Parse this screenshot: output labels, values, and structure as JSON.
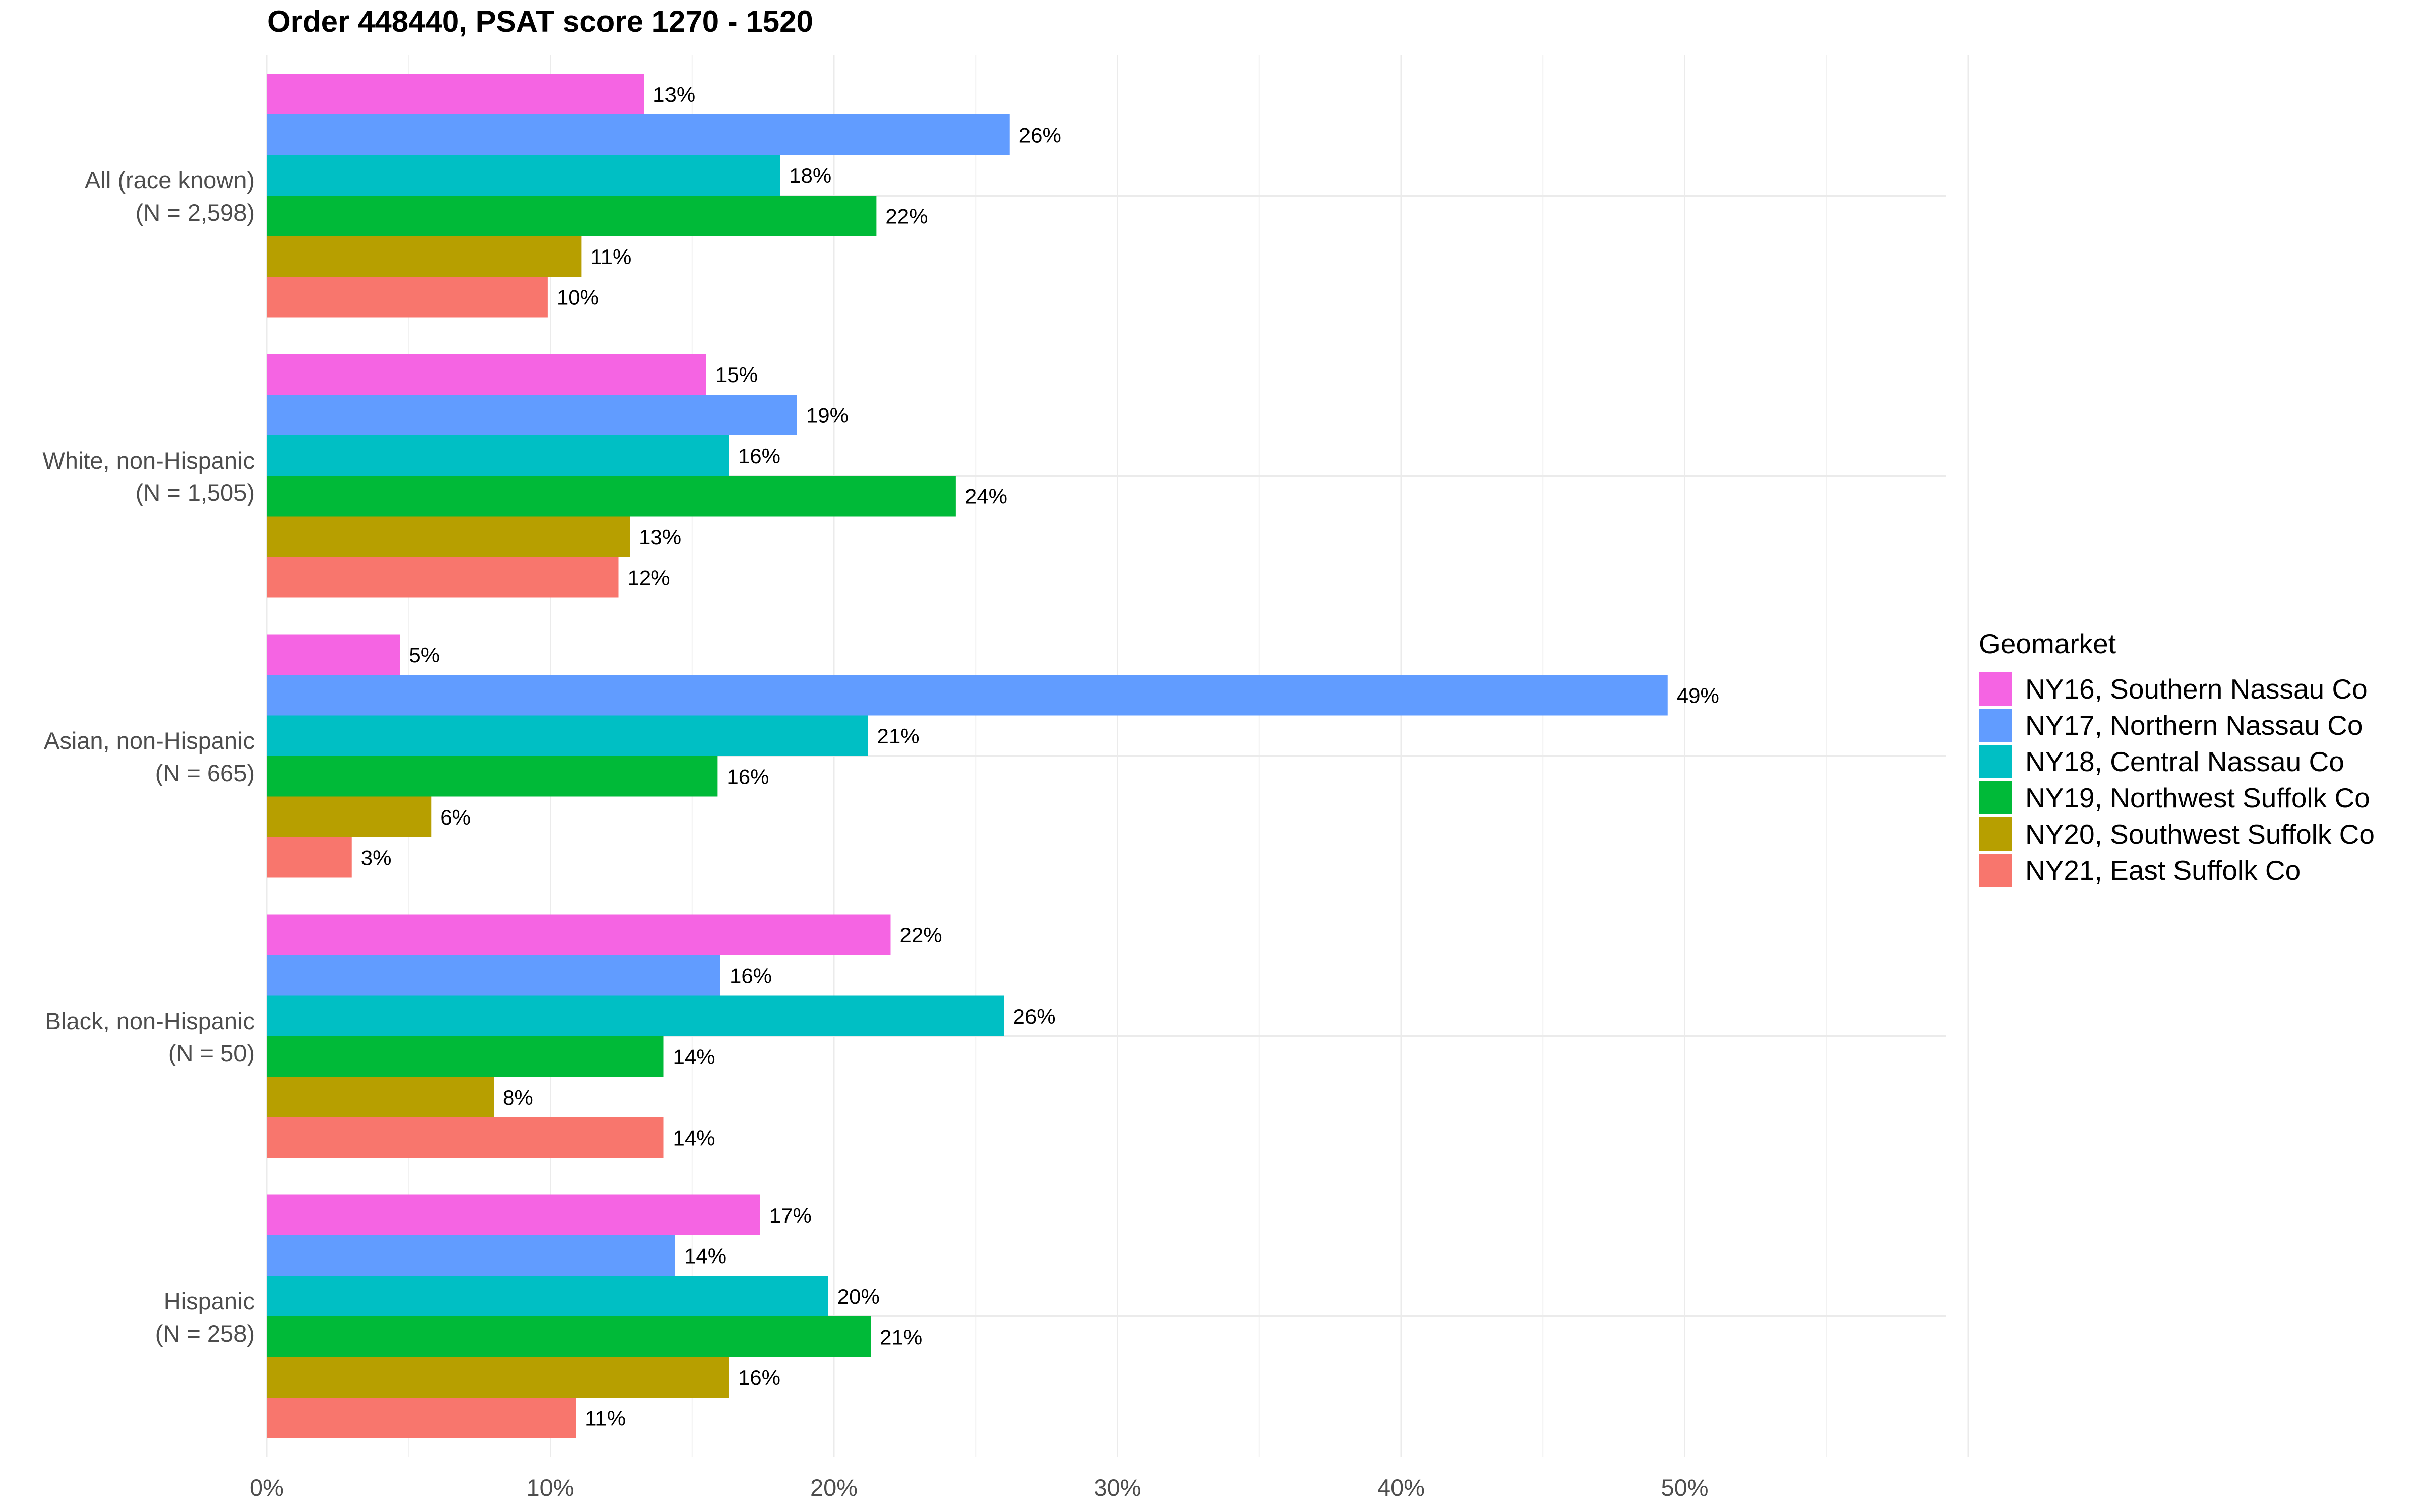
{
  "chart_data": {
    "type": "bar",
    "orientation": "horizontal",
    "title": "Order 448440, PSAT score 1270 - 1520",
    "xlabel": "",
    "ylabel": "",
    "xlim": [
      0,
      0.59
    ],
    "x_ticks": [
      "0%",
      "10%",
      "20%",
      "30%",
      "40%",
      "50%"
    ],
    "x_tick_values": [
      0,
      0.1,
      0.2,
      0.3,
      0.4,
      0.5
    ],
    "grid": true,
    "legend_title": "Geomarket",
    "legend_position": "right",
    "categories": [
      "All (race known)\n(N = 2,598)",
      "White, non-Hispanic\n(N = 1,505)",
      "Asian, non-Hispanic\n(N = 665)",
      "Black, non-Hispanic\n(N = 50)",
      "Hispanic\n(N = 258)"
    ],
    "category_lines": [
      [
        "All (race known)",
        "(N = 2,598)"
      ],
      [
        "White, non-Hispanic",
        "(N = 1,505)"
      ],
      [
        "Asian, non-Hispanic",
        "(N = 665)"
      ],
      [
        "Black, non-Hispanic",
        "(N = 50)"
      ],
      [
        "Hispanic",
        "(N = 258)"
      ]
    ],
    "series": [
      {
        "name": "NY16, Southern Nassau Co",
        "color": "#F564E3",
        "values": [
          0.133,
          0.155,
          0.047,
          0.22,
          0.174
        ],
        "labels": [
          "13%",
          "15%",
          "5%",
          "22%",
          "17%"
        ]
      },
      {
        "name": "NY17, Northern Nassau Co",
        "color": "#619CFF",
        "values": [
          0.262,
          0.187,
          0.494,
          0.16,
          0.144
        ],
        "labels": [
          "26%",
          "19%",
          "49%",
          "16%",
          "14%"
        ]
      },
      {
        "name": "NY18, Central Nassau Co",
        "color": "#00BFC4",
        "values": [
          0.181,
          0.163,
          0.212,
          0.26,
          0.198
        ],
        "labels": [
          "18%",
          "16%",
          "21%",
          "26%",
          "20%"
        ]
      },
      {
        "name": "NY19, Northwest Suffolk Co",
        "color": "#00BA38",
        "values": [
          0.215,
          0.243,
          0.159,
          0.14,
          0.213
        ],
        "labels": [
          "22%",
          "24%",
          "16%",
          "14%",
          "21%"
        ]
      },
      {
        "name": "NY20, Southwest Suffolk Co",
        "color": "#B79F00",
        "values": [
          0.111,
          0.128,
          0.058,
          0.08,
          0.163
        ],
        "labels": [
          "11%",
          "13%",
          "6%",
          "8%",
          "16%"
        ]
      },
      {
        "name": "NY21, East Suffolk Co",
        "color": "#F8766D",
        "values": [
          0.099,
          0.124,
          0.03,
          0.14,
          0.109
        ],
        "labels": [
          "10%",
          "12%",
          "3%",
          "14%",
          "11%"
        ]
      }
    ]
  }
}
